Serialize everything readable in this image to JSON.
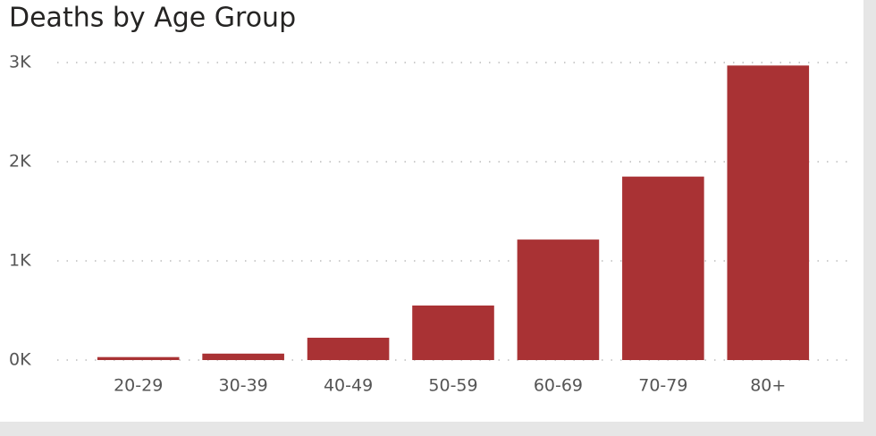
{
  "chart_data": {
    "type": "bar",
    "title": "Deaths by Age Group",
    "categories": [
      "20-29",
      "30-39",
      "40-49",
      "50-59",
      "60-69",
      "70-79",
      "80+"
    ],
    "values": [
      30,
      65,
      225,
      550,
      1215,
      1850,
      2970
    ],
    "color": "#a93234",
    "ylim": [
      0,
      3000
    ],
    "yticks": [
      {
        "value": 0,
        "label": "0K"
      },
      {
        "value": 1000,
        "label": "1K"
      },
      {
        "value": 2000,
        "label": "2K"
      },
      {
        "value": 3000,
        "label": "3K"
      }
    ],
    "grid": true
  }
}
